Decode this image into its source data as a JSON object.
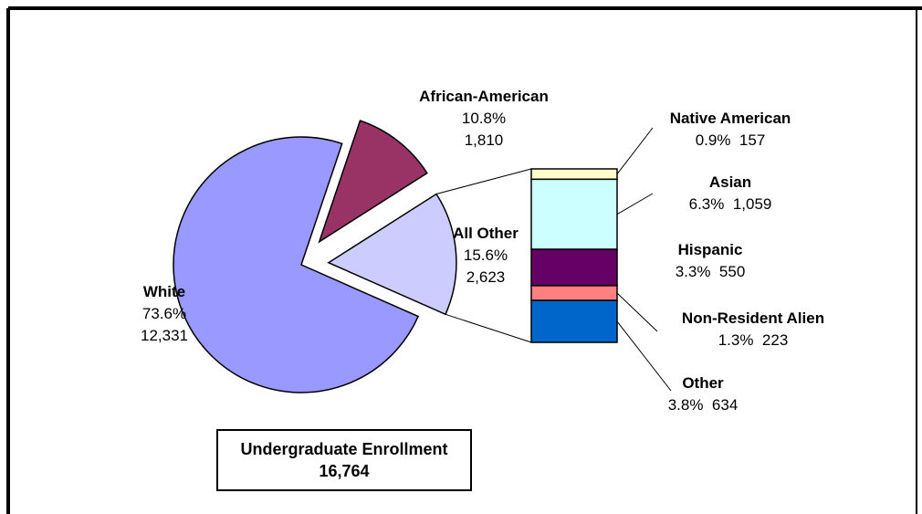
{
  "chart_data": {
    "type": "pie",
    "total_label": "Undergraduate Enrollment",
    "total_value": "16,764",
    "slices": [
      {
        "name": "White",
        "percent_label": "73.6%",
        "count_label": "12,331",
        "value": 12331,
        "color": "#9999ff"
      },
      {
        "name": "African-American",
        "percent_label": "10.8%",
        "count_label": "1,810",
        "value": 1810,
        "color": "#993366"
      },
      {
        "name": "All Other",
        "percent_label": "15.6%",
        "count_label": "2,623",
        "value": 2623,
        "color": "#ccccff"
      }
    ],
    "breakdown": {
      "parent": "All Other",
      "type": "stacked-bar",
      "segments": [
        {
          "name": "Native American",
          "percent_label": "0.9%",
          "count_label": "157",
          "value": 157,
          "color": "#ffffcc"
        },
        {
          "name": "Asian",
          "percent_label": "6.3%",
          "count_label": "1,059",
          "value": 1059,
          "color": "#ccffff"
        },
        {
          "name": "Hispanic",
          "percent_label": "3.3%",
          "count_label": "550",
          "value": 550,
          "color": "#660066"
        },
        {
          "name": "Non-Resident Alien",
          "percent_label": "1.3%",
          "count_label": "223",
          "value": 223,
          "color": "#ff8080"
        },
        {
          "name": "Other",
          "percent_label": "3.8%",
          "count_label": "634",
          "value": 634,
          "color": "#0066cc"
        }
      ]
    }
  }
}
